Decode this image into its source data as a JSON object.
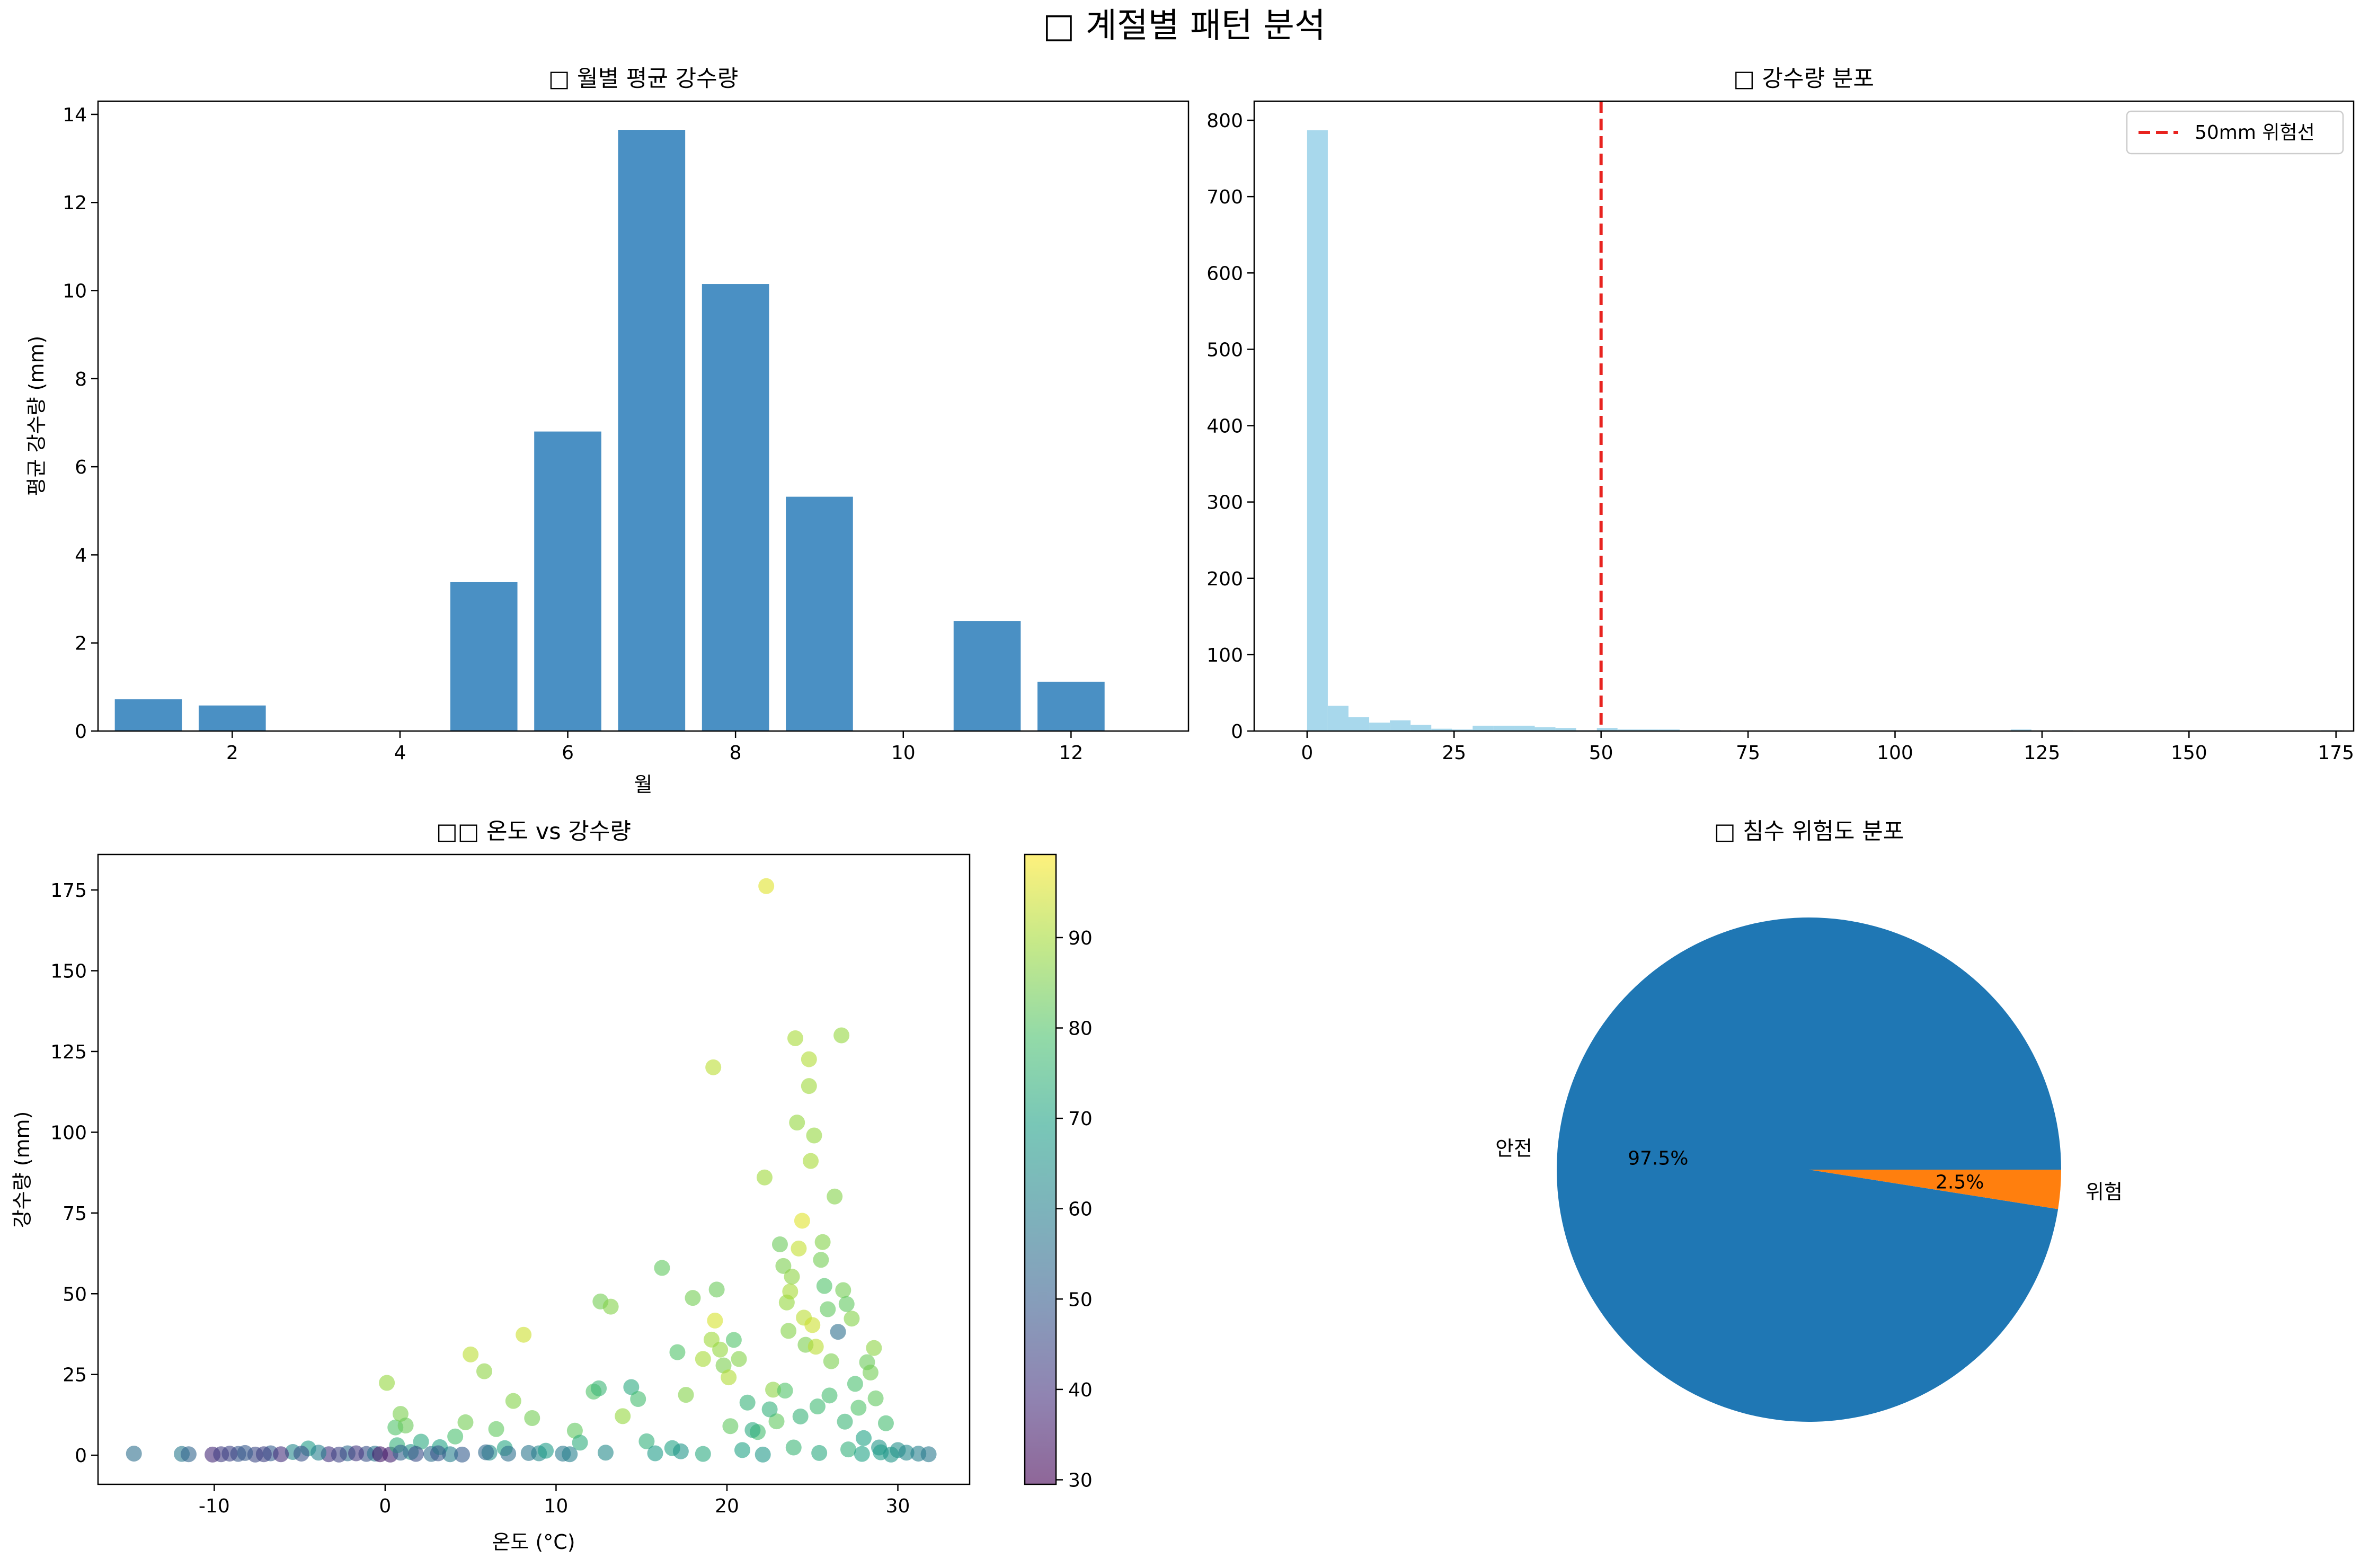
{
  "suptitle": "□ 계절별 패턴 분석",
  "chart_data": [
    {
      "id": "monthly",
      "type": "bar",
      "title": "□ 월별 평균 강수량",
      "xlabel": "월",
      "ylabel": "평균 강수량 (mm)",
      "color": "#4a90c4",
      "categories": [
        1,
        2,
        3,
        4,
        5,
        6,
        7,
        8,
        9,
        10,
        11,
        12
      ],
      "values": [
        0.72,
        0.58,
        0,
        0,
        3.38,
        6.8,
        13.65,
        10.15,
        5.32,
        0,
        2.5,
        1.12
      ],
      "xlim": [
        0.4,
        13.4
      ],
      "ylim": [
        0,
        14.3
      ],
      "xticks": [
        "2",
        "4",
        "6",
        "8",
        "10",
        "12"
      ],
      "yticks": [
        "0",
        "2",
        "4",
        "6",
        "8",
        "10",
        "12",
        "14"
      ]
    },
    {
      "id": "hist",
      "type": "bar",
      "subtype": "histogram",
      "title": "□ 강수량 분포",
      "color": "#a8d8ec",
      "bin_width": 3.52,
      "bin_start": 0,
      "values": [
        787,
        33,
        18,
        11,
        14,
        8,
        3,
        2,
        7,
        7,
        7,
        5,
        4,
        1,
        4,
        2,
        2,
        2,
        1,
        1,
        0,
        0,
        0,
        0,
        0,
        0,
        0,
        0,
        0,
        0,
        0,
        0,
        0,
        0,
        2,
        0,
        1,
        0,
        0,
        0,
        0,
        0,
        0,
        0,
        0,
        0,
        0,
        0,
        0,
        1
      ],
      "xlim": [
        -9,
        178
      ],
      "ylim": [
        0,
        825
      ],
      "xticks": [
        "0",
        "25",
        "50",
        "75",
        "100",
        "125",
        "150",
        "175"
      ],
      "yticks": [
        "0",
        "100",
        "200",
        "300",
        "400",
        "500",
        "600",
        "700",
        "800"
      ],
      "threshold": {
        "value": 50,
        "color": "#e8231f",
        "label": "50mm 위험선"
      },
      "legend_position": "upper right"
    },
    {
      "id": "scatter",
      "type": "scatter",
      "title": "□□ 온도 vs 강수량",
      "xlabel": "온도 (°C)",
      "ylabel": "강수량 (mm)",
      "colormap": "viridis",
      "color_range": [
        29.5,
        99.2
      ],
      "xlim": [
        -16.8,
        34.2
      ],
      "ylim": [
        -9,
        186
      ],
      "xticks": [
        "-10",
        "0",
        "10",
        "20",
        "30"
      ],
      "yticks": [
        "0",
        "25",
        "50",
        "75",
        "100",
        "125",
        "150",
        "175"
      ],
      "colorbar_ticks": [
        "30",
        "40",
        "50",
        "60",
        "70",
        "80",
        "90"
      ],
      "points": [
        [
          -14.7,
          0.5,
          55
        ],
        [
          -11.9,
          0.4,
          58
        ],
        [
          -11.5,
          0.3,
          52
        ],
        [
          -10.1,
          0.2,
          38
        ],
        [
          -9.6,
          0.3,
          42
        ],
        [
          -8.6,
          0.4,
          48
        ],
        [
          -7.6,
          0.2,
          45
        ],
        [
          -6.7,
          0.6,
          50
        ],
        [
          -5.4,
          1.0,
          62
        ],
        [
          -4.5,
          2.1,
          68
        ],
        [
          -3.3,
          0.3,
          40
        ],
        [
          -2.2,
          0.6,
          54
        ],
        [
          -1.1,
          0.4,
          47
        ],
        [
          0.3,
          0.2,
          36
        ],
        [
          -9.1,
          0.5,
          44
        ],
        [
          -6.1,
          0.3,
          39
        ],
        [
          -3.9,
          0.8,
          60
        ],
        [
          -0.6,
          0.5,
          57
        ],
        [
          0.1,
          22.4,
          88
        ],
        [
          0.6,
          8.6,
          80
        ],
        [
          0.7,
          3.1,
          74
        ],
        [
          0.9,
          12.8,
          85
        ],
        [
          1.2,
          9.2,
          83
        ],
        [
          1.5,
          1.0,
          66
        ],
        [
          2.1,
          4.2,
          72
        ],
        [
          2.7,
          0.4,
          55
        ],
        [
          3.2,
          2.5,
          70
        ],
        [
          3.8,
          0.3,
          60
        ],
        [
          4.1,
          5.8,
          79
        ],
        [
          4.7,
          10.2,
          84
        ],
        [
          5.0,
          31.2,
          92
        ],
        [
          5.8,
          26.0,
          87
        ],
        [
          6.1,
          0.8,
          64
        ],
        [
          6.5,
          8.1,
          82
        ],
        [
          7.0,
          2.2,
          71
        ],
        [
          7.5,
          16.8,
          86
        ],
        [
          8.1,
          37.3,
          94
        ],
        [
          8.6,
          11.5,
          84
        ],
        [
          9.0,
          0.6,
          62
        ],
        [
          9.4,
          1.4,
          68
        ],
        [
          10.4,
          0.5,
          58
        ],
        [
          11.1,
          7.6,
          82
        ],
        [
          11.4,
          3.9,
          73
        ],
        [
          12.2,
          19.7,
          80
        ],
        [
          12.5,
          20.7,
          76
        ],
        [
          12.6,
          47.6,
          84
        ],
        [
          13.2,
          46.0,
          86
        ],
        [
          13.9,
          12.1,
          88
        ],
        [
          14.4,
          21.1,
          72
        ],
        [
          14.8,
          17.4,
          78
        ],
        [
          15.3,
          4.3,
          74
        ],
        [
          16.2,
          58.0,
          82
        ],
        [
          16.8,
          2.2,
          70
        ],
        [
          17.1,
          31.9,
          80
        ],
        [
          17.6,
          18.7,
          86
        ],
        [
          18.0,
          48.7,
          84
        ],
        [
          18.6,
          29.8,
          90
        ],
        [
          19.1,
          35.8,
          89
        ],
        [
          19.2,
          120.1,
          92
        ],
        [
          19.3,
          41.7,
          95
        ],
        [
          19.4,
          51.3,
          83
        ],
        [
          19.6,
          32.7,
          88
        ],
        [
          19.8,
          27.8,
          85
        ],
        [
          20.1,
          24.1,
          91
        ],
        [
          20.2,
          9.0,
          82
        ],
        [
          20.4,
          35.7,
          80
        ],
        [
          20.7,
          29.8,
          86
        ],
        [
          21.2,
          16.3,
          75
        ],
        [
          21.8,
          7.2,
          78
        ],
        [
          22.2,
          86.0,
          89
        ],
        [
          22.3,
          176.2,
          96
        ],
        [
          22.7,
          20.3,
          87
        ],
        [
          22.9,
          10.5,
          82
        ],
        [
          23.1,
          65.3,
          83
        ],
        [
          23.3,
          58.6,
          85
        ],
        [
          23.5,
          47.3,
          88
        ],
        [
          23.6,
          38.5,
          86
        ],
        [
          23.7,
          50.7,
          90
        ],
        [
          23.8,
          55.3,
          87
        ],
        [
          24.0,
          129.1,
          90
        ],
        [
          24.1,
          103.0,
          88
        ],
        [
          24.2,
          64.0,
          93
        ],
        [
          24.4,
          72.6,
          96
        ],
        [
          24.5,
          42.6,
          92
        ],
        [
          24.6,
          34.2,
          85
        ],
        [
          24.8,
          122.6,
          91
        ],
        [
          24.8,
          114.3,
          89
        ],
        [
          24.9,
          91.1,
          90
        ],
        [
          25.0,
          40.3,
          94
        ],
        [
          25.1,
          99.0,
          88
        ],
        [
          25.2,
          33.6,
          92
        ],
        [
          25.5,
          60.5,
          84
        ],
        [
          25.6,
          66.0,
          86
        ],
        [
          25.7,
          52.4,
          80
        ],
        [
          25.9,
          45.2,
          82
        ],
        [
          26.1,
          29.1,
          85
        ],
        [
          26.3,
          80.1,
          86
        ],
        [
          26.5,
          38.2,
          55
        ],
        [
          26.7,
          130.0,
          88
        ],
        [
          26.8,
          51.1,
          84
        ],
        [
          27.0,
          46.8,
          82
        ],
        [
          27.3,
          42.3,
          86
        ],
        [
          27.7,
          14.7,
          80
        ],
        [
          28.2,
          28.8,
          83
        ],
        [
          28.4,
          25.6,
          84
        ],
        [
          28.6,
          33.2,
          87
        ],
        [
          28.7,
          17.6,
          82
        ],
        [
          27.5,
          22.1,
          79
        ],
        [
          26.0,
          18.5,
          78
        ],
        [
          25.3,
          15.1,
          77
        ],
        [
          24.3,
          12.0,
          75
        ],
        [
          23.4,
          20.0,
          80
        ],
        [
          22.5,
          14.2,
          74
        ],
        [
          21.5,
          7.8,
          72
        ],
        [
          26.9,
          10.4,
          76
        ],
        [
          28.0,
          5.3,
          70
        ],
        [
          29.3,
          9.9,
          78
        ],
        [
          28.9,
          2.4,
          66
        ],
        [
          30.0,
          1.6,
          64
        ],
        [
          30.5,
          0.8,
          62
        ],
        [
          31.2,
          0.5,
          60
        ],
        [
          31.8,
          0.3,
          58
        ],
        [
          15.8,
          0.6,
          68
        ],
        [
          17.3,
          1.2,
          66
        ],
        [
          18.6,
          0.4,
          72
        ],
        [
          20.9,
          1.6,
          70
        ],
        [
          22.1,
          0.2,
          67
        ],
        [
          23.9,
          2.4,
          76
        ],
        [
          25.4,
          0.7,
          72
        ],
        [
          27.1,
          1.8,
          74
        ],
        [
          27.9,
          0.4,
          70
        ],
        [
          29.0,
          0.9,
          68
        ],
        [
          29.6,
          0.2,
          66
        ],
        [
          12.9,
          0.8,
          63
        ],
        [
          10.8,
          0.3,
          60
        ],
        [
          8.4,
          0.7,
          57
        ],
        [
          7.2,
          0.5,
          55
        ],
        [
          5.9,
          0.9,
          53
        ],
        [
          4.5,
          0.2,
          50
        ],
        [
          3.1,
          0.6,
          48
        ],
        [
          1.8,
          0.4,
          46
        ],
        [
          0.9,
          0.8,
          51
        ],
        [
          -0.3,
          0.3,
          34
        ],
        [
          -1.7,
          0.6,
          41
        ],
        [
          -2.7,
          0.2,
          44
        ],
        [
          -4.9,
          0.5,
          47
        ],
        [
          -7.1,
          0.3,
          43
        ],
        [
          -8.2,
          0.7,
          49
        ]
      ]
    },
    {
      "id": "pie",
      "type": "pie",
      "title": "□ 침수 위험도 분포",
      "labels": [
        "안전",
        "위험"
      ],
      "values": [
        97.5,
        2.5
      ],
      "pct_labels": [
        "97.5%",
        "2.5%"
      ],
      "colors": [
        "#1f77b4",
        "#ff7f0e"
      ]
    }
  ]
}
